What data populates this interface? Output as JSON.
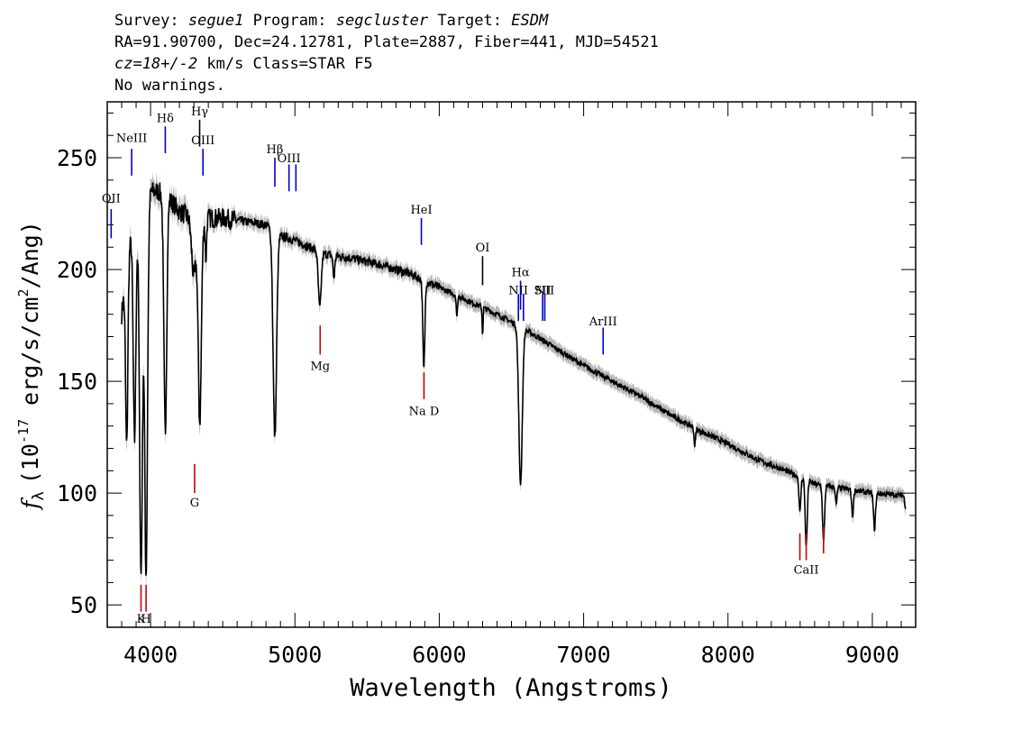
{
  "header": {
    "line1_survey_label": "Survey:",
    "line1_survey_value": "segue1",
    "line1_program_label": "Program:",
    "line1_program_value": "segcluster",
    "line1_target_label": "Target:",
    "line1_target_value": "ESDM",
    "line2": "RA=91.90700, Dec=24.12781, Plate=2887, Fiber=441, MJD=54521",
    "line3_cz_label": "cz=",
    "line3_cz_value": "18+/-2",
    "line3_rest": " km/s Class=STAR F5",
    "line4": "No warnings."
  },
  "chart_data": {
    "type": "line",
    "xlabel": "Wavelength (Angstroms)",
    "ylabel": "f_λ (10^-17 erg/s/cm^2/Ang)",
    "ylabel_parts": {
      "f": "f",
      "lambda": "λ",
      "open": "(10",
      "exp": "-17",
      "mid": " erg/s/cm",
      "sq": "2",
      "tail": "/Ang)"
    },
    "xlim": [
      3700,
      9300
    ],
    "ylim": [
      40,
      275
    ],
    "xticks": [
      4000,
      5000,
      6000,
      7000,
      8000,
      9000
    ],
    "yticks": [
      50,
      100,
      150,
      200,
      250
    ],
    "grid": false,
    "continuum": {
      "x": [
        3800,
        3850,
        3900,
        3950,
        4000,
        4050,
        4100,
        4150,
        4200,
        4300,
        4400,
        4500,
        4600,
        4700,
        4800,
        4900,
        5000,
        5200,
        5400,
        5600,
        5800,
        6000,
        6200,
        6400,
        6600,
        6800,
        7000,
        7200,
        7400,
        7600,
        7800,
        8000,
        8200,
        8400,
        8600,
        8800,
        9000,
        9200
      ],
      "y": [
        180,
        210,
        220,
        225,
        235,
        235,
        233,
        230,
        226,
        222,
        223,
        223,
        222,
        221,
        220,
        215,
        213,
        207,
        205,
        202,
        198,
        192,
        186,
        180,
        173,
        165,
        157,
        150,
        143,
        135,
        128,
        122,
        115,
        110,
        104,
        102,
        100,
        99
      ]
    },
    "absorption_lines": [
      {
        "x": 3835,
        "depth": 80,
        "width": 8
      },
      {
        "x": 3889,
        "depth": 95,
        "width": 9
      },
      {
        "x": 3934,
        "depth": 160,
        "width": 10
      },
      {
        "x": 3969,
        "depth": 165,
        "width": 10
      },
      {
        "x": 4102,
        "depth": 105,
        "width": 10
      },
      {
        "x": 4300,
        "depth": 25,
        "width": 15
      },
      {
        "x": 4341,
        "depth": 90,
        "width": 11
      },
      {
        "x": 4383,
        "depth": 18,
        "width": 5
      },
      {
        "x": 4861,
        "depth": 92,
        "width": 12
      },
      {
        "x": 5172,
        "depth": 25,
        "width": 10
      },
      {
        "x": 5270,
        "depth": 10,
        "width": 6
      },
      {
        "x": 5893,
        "depth": 40,
        "width": 7
      },
      {
        "x": 6122,
        "depth": 10,
        "width": 4
      },
      {
        "x": 6300,
        "depth": 12,
        "width": 3
      },
      {
        "x": 6563,
        "depth": 70,
        "width": 12
      },
      {
        "x": 7770,
        "depth": 8,
        "width": 5
      },
      {
        "x": 8498,
        "depth": 16,
        "width": 6
      },
      {
        "x": 8542,
        "depth": 30,
        "width": 7
      },
      {
        "x": 8662,
        "depth": 25,
        "width": 7
      },
      {
        "x": 8750,
        "depth": 8,
        "width": 5
      },
      {
        "x": 8863,
        "depth": 12,
        "width": 6
      },
      {
        "x": 9015,
        "depth": 16,
        "width": 7
      },
      {
        "x": 9230,
        "depth": 5,
        "width": 6
      }
    ],
    "emission_markers": [
      {
        "label": "OII",
        "x": 3727,
        "y1": 214,
        "y2": 227,
        "label_y": 230,
        "color": "#0000cc"
      },
      {
        "label": "NeIII",
        "x": 3869,
        "y1": 242,
        "y2": 254,
        "label_y": 257,
        "color": "#0000cc"
      },
      {
        "label": "Hδ",
        "x": 4102,
        "y1": 252,
        "y2": 264,
        "label_y": 266,
        "color": "#0000cc"
      },
      {
        "label": "Hγ",
        "x": 4340,
        "y1": 255,
        "y2": 267,
        "label_y": 269,
        "color": "#000000"
      },
      {
        "label": "OIII",
        "x": 4363,
        "y1": 242,
        "y2": 254,
        "label_y": 256,
        "color": "#0000cc"
      },
      {
        "label": "Hβ",
        "x": 4861,
        "y1": 237,
        "y2": 250,
        "label_y": 252,
        "color": "#0000cc"
      },
      {
        "label": "OIII",
        "x": 4959,
        "y1": 235,
        "y2": 247,
        "label_y": 248,
        "color": "#0000cc"
      },
      {
        "label": "",
        "x": 5007,
        "y1": 235,
        "y2": 247,
        "label_y": 248,
        "color": "#0000cc"
      },
      {
        "label": "HeI",
        "x": 5876,
        "y1": 211,
        "y2": 223,
        "label_y": 225,
        "color": "#0000cc"
      },
      {
        "label": "OI",
        "x": 6300,
        "y1": 193,
        "y2": 206,
        "label_y": 208,
        "color": "#000000"
      },
      {
        "label": "NII",
        "x": 6548,
        "y1": 177,
        "y2": 189,
        "label_y": 189,
        "color": "#0000cc"
      },
      {
        "label": "Hα",
        "x": 6563,
        "y1": 182,
        "y2": 195,
        "label_y": 197,
        "color": "#0000cc"
      },
      {
        "label": "",
        "x": 6583,
        "y1": 177,
        "y2": 189,
        "label_y": 189,
        "color": "#0000cc"
      },
      {
        "label": "SII",
        "x": 6716,
        "y1": 177,
        "y2": 189,
        "label_y": 189,
        "color": "#0000cc"
      },
      {
        "label": "NII",
        "x": 6731,
        "y1": 177,
        "y2": 189,
        "label_y": 189,
        "color": "#0000cc"
      },
      {
        "label": "ArIII",
        "x": 7135,
        "y1": 162,
        "y2": 174,
        "label_y": 175,
        "color": "#0000cc"
      }
    ],
    "absorption_markers": [
      {
        "label": "K",
        "x": 3934,
        "y1": 47,
        "y2": 59,
        "label_y": 42,
        "color": "#cc0000"
      },
      {
        "label": "H",
        "x": 3969,
        "y1": 47,
        "y2": 59,
        "label_y": 42,
        "color": "#cc0000"
      },
      {
        "label": "G",
        "x": 4305,
        "y1": 100,
        "y2": 113,
        "label_y": 94,
        "color": "#cc0000"
      },
      {
        "label": "Mg",
        "x": 5175,
        "y1": 162,
        "y2": 175,
        "label_y": 155,
        "color": "#cc0000"
      },
      {
        "label": "Na D",
        "x": 5894,
        "y1": 142,
        "y2": 154,
        "label_y": 135,
        "color": "#cc0000"
      },
      {
        "label": "",
        "x": 8498,
        "y1": 70,
        "y2": 82,
        "label_y": 64,
        "color": "#cc0000"
      },
      {
        "label": "CaII",
        "x": 8542,
        "y1": 70,
        "y2": 82,
        "label_y": 64,
        "color": "#cc0000"
      },
      {
        "label": "",
        "x": 8662,
        "y1": 73,
        "y2": 85,
        "label_y": 64,
        "color": "#cc0000"
      }
    ]
  }
}
